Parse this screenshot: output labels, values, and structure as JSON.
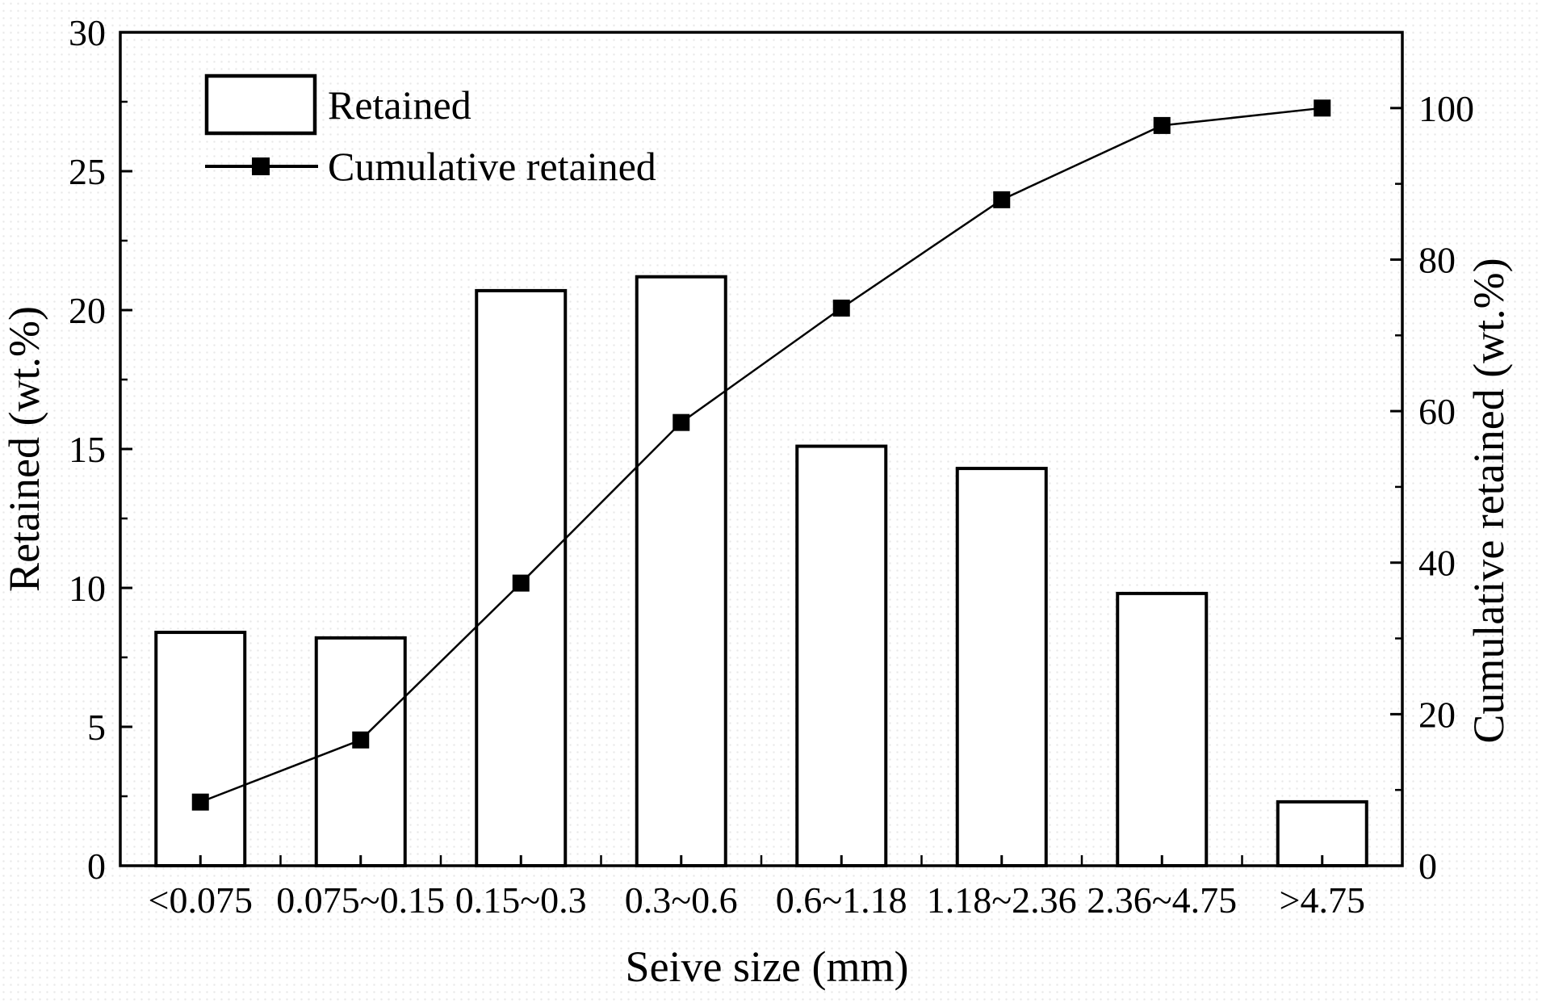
{
  "chart_data": {
    "type": "bar",
    "subtype": "bar-and-line-dual-axis",
    "title": "",
    "xlabel": "Seive size (mm)",
    "categories": [
      "<0.075",
      "0.075~0.15",
      "0.15~0.3",
      "0.3~0.6",
      "0.6~1.18",
      "1.18~2.36",
      "2.36~4.75",
      ">4.75"
    ],
    "series": [
      {
        "name": "Retained",
        "type": "bar",
        "axis": "left",
        "values": [
          8.4,
          8.2,
          20.7,
          21.2,
          15.1,
          14.3,
          9.8,
          2.3
        ]
      },
      {
        "name": "Cumulative retained",
        "type": "line",
        "axis": "right",
        "marker": "filled-square",
        "values": [
          8.4,
          16.6,
          37.3,
          58.5,
          73.6,
          87.9,
          97.7,
          100.0
        ]
      }
    ],
    "left_axis": {
      "label": "Retained (wt.%)",
      "min": 0,
      "max": 30,
      "axis_max": 30,
      "major_tick": 5,
      "minor_tick": 2.5,
      "tick_labels": [
        "0",
        "5",
        "10",
        "15",
        "20",
        "25",
        "30"
      ]
    },
    "right_axis": {
      "label": "Cumulative retained (wt.%)",
      "min": 0,
      "max": 100,
      "axis_max": 110,
      "major_tick": 20,
      "minor_tick": 10,
      "tick_labels": [
        "0",
        "20",
        "40",
        "60",
        "80",
        "100"
      ]
    },
    "legend": {
      "position": "top-left-inside",
      "entries": [
        "Retained",
        "Cumulative retained"
      ]
    },
    "grid": "off",
    "colors": {
      "stroke": "#000000",
      "bar_fill": "#ffffff",
      "background": "#ffffff"
    }
  }
}
